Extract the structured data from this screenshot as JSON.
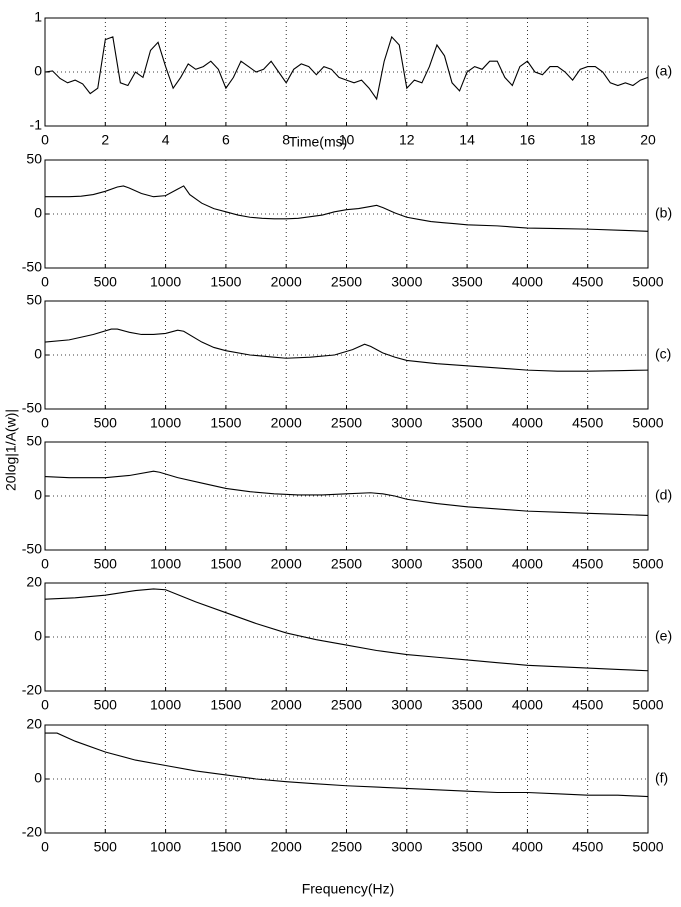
{
  "ylabel": "20log|1/A(w)|",
  "xlabel": "Frequency(Hz)",
  "chart_data": [
    {
      "type": "line",
      "label": "(a)",
      "xlabel": "Time(ms)",
      "color": "#000000",
      "grid": true,
      "x": [
        0,
        0.25,
        0.5,
        0.75,
        1,
        1.25,
        1.5,
        1.75,
        2,
        2.25,
        2.5,
        2.75,
        3,
        3.25,
        3.5,
        3.75,
        4,
        4.25,
        4.5,
        4.75,
        5,
        5.25,
        5.5,
        5.75,
        6,
        6.25,
        6.5,
        6.75,
        7,
        7.25,
        7.5,
        7.75,
        8,
        8.25,
        8.5,
        8.75,
        9,
        9.25,
        9.5,
        9.75,
        10,
        10.25,
        10.5,
        10.75,
        11,
        11.25,
        11.5,
        11.75,
        12,
        12.25,
        12.5,
        12.75,
        13,
        13.25,
        13.5,
        13.75,
        14,
        14.25,
        14.5,
        14.75,
        15,
        15.25,
        15.5,
        15.75,
        16,
        16.25,
        16.5,
        16.75,
        17,
        17.25,
        17.5,
        17.75,
        18,
        18.25,
        18.5,
        18.75,
        19,
        19.25,
        19.5,
        19.75,
        20
      ],
      "values": [
        0,
        0.02,
        -0.12,
        -0.2,
        -0.15,
        -0.22,
        -0.4,
        -0.3,
        0.6,
        0.65,
        -0.2,
        -0.25,
        0,
        -0.1,
        0.4,
        0.55,
        0.1,
        -0.3,
        -0.1,
        0.15,
        0.05,
        0.1,
        0.2,
        0.05,
        -0.3,
        -0.1,
        0.2,
        0.1,
        0,
        0.05,
        0.2,
        0,
        -0.2,
        0.05,
        0.15,
        0.1,
        -0.05,
        0.1,
        0.05,
        -0.1,
        -0.15,
        -0.2,
        -0.15,
        -0.3,
        -0.5,
        0.2,
        0.65,
        0.5,
        -0.3,
        -0.15,
        -0.2,
        0.1,
        0.5,
        0.3,
        -0.2,
        -0.35,
        0,
        0.1,
        0.05,
        0.2,
        0.2,
        -0.1,
        -0.25,
        0.1,
        0.2,
        0,
        -0.05,
        0.1,
        0.1,
        0,
        -0.15,
        0.05,
        0.1,
        0.1,
        0,
        -0.2,
        -0.25,
        -0.2,
        -0.25,
        -0.15,
        -0.1
      ],
      "xlim": [
        0,
        20
      ],
      "ylim": [
        -1,
        1
      ],
      "xticks": [
        0,
        2,
        4,
        6,
        8,
        10,
        12,
        14,
        16,
        18,
        20
      ],
      "yticks": [
        -1,
        0,
        1
      ]
    },
    {
      "type": "line",
      "label": "(b)",
      "color": "#000000",
      "grid": true,
      "x": [
        0,
        100,
        200,
        300,
        400,
        500,
        600,
        650,
        700,
        800,
        900,
        1000,
        1100,
        1150,
        1200,
        1300,
        1400,
        1500,
        1600,
        1700,
        1800,
        1900,
        2000,
        2100,
        2200,
        2300,
        2400,
        2500,
        2600,
        2700,
        2750,
        2800,
        2900,
        3000,
        3100,
        3200,
        3300,
        3400,
        3500,
        3750,
        4000,
        4250,
        4500,
        4750,
        5000
      ],
      "values": [
        16,
        16,
        16,
        16.5,
        18,
        21,
        25,
        26,
        24,
        19,
        16,
        17,
        23,
        26,
        18,
        10,
        5,
        2,
        -1,
        -3,
        -4,
        -4.5,
        -4.5,
        -4,
        -2.5,
        -1,
        2,
        4,
        5,
        7,
        8,
        6,
        1,
        -3,
        -5,
        -7,
        -8,
        -9,
        -10,
        -11,
        -13,
        -13.5,
        -14,
        -15,
        -16
      ],
      "xlim": [
        0,
        5000
      ],
      "ylim": [
        -50,
        50
      ],
      "xticks": [
        0,
        500,
        1000,
        1500,
        2000,
        2500,
        3000,
        3500,
        4000,
        4500,
        5000
      ],
      "yticks": [
        -50,
        0,
        50
      ]
    },
    {
      "type": "line",
      "label": "(c)",
      "color": "#000000",
      "grid": true,
      "x": [
        0,
        200,
        400,
        550,
        600,
        700,
        800,
        900,
        1000,
        1100,
        1150,
        1300,
        1400,
        1500,
        1700,
        1900,
        2000,
        2200,
        2400,
        2550,
        2650,
        2700,
        2800,
        2900,
        3000,
        3250,
        3500,
        3750,
        4000,
        4250,
        4500,
        4750,
        5000
      ],
      "values": [
        12,
        14,
        19,
        24,
        24,
        21,
        19,
        19,
        20,
        23,
        22,
        12,
        7,
        4,
        0,
        -2,
        -3,
        -2,
        0,
        5,
        10,
        8,
        2,
        -2,
        -5,
        -8,
        -10,
        -12,
        -14,
        -15,
        -15,
        -14.5,
        -14
      ],
      "xlim": [
        0,
        5000
      ],
      "ylim": [
        -50,
        50
      ],
      "xticks": [
        0,
        500,
        1000,
        1500,
        2000,
        2500,
        3000,
        3500,
        4000,
        4500,
        5000
      ],
      "yticks": [
        -50,
        0,
        50
      ]
    },
    {
      "type": "line",
      "label": "(d)",
      "color": "#000000",
      "grid": true,
      "x": [
        0,
        200,
        500,
        700,
        900,
        950,
        1100,
        1300,
        1500,
        1700,
        1900,
        2100,
        2300,
        2500,
        2700,
        2800,
        2900,
        3000,
        3250,
        3500,
        3750,
        4000,
        4250,
        4500,
        4750,
        5000
      ],
      "values": [
        18,
        17,
        17,
        19,
        23,
        22,
        17,
        12,
        7,
        4,
        2,
        1,
        1,
        2,
        3,
        2,
        0,
        -3,
        -7,
        -10,
        -12,
        -14,
        -15,
        -16,
        -17,
        -18
      ],
      "xlim": [
        0,
        5000
      ],
      "ylim": [
        -50,
        50
      ],
      "xticks": [
        0,
        500,
        1000,
        1500,
        2000,
        2500,
        3000,
        3500,
        4000,
        4500,
        5000
      ],
      "yticks": [
        -50,
        0,
        50
      ]
    },
    {
      "type": "line",
      "label": "(e)",
      "color": "#000000",
      "grid": true,
      "x": [
        0,
        250,
        500,
        750,
        900,
        1000,
        1250,
        1500,
        1750,
        2000,
        2250,
        2500,
        2750,
        3000,
        3250,
        3500,
        3750,
        4000,
        4250,
        4500,
        4750,
        5000
      ],
      "values": [
        14,
        14.5,
        15.5,
        17.2,
        17.8,
        17.5,
        13,
        9,
        5,
        1.5,
        -1,
        -3,
        -5,
        -6.5,
        -7.5,
        -8.5,
        -9.5,
        -10.5,
        -11,
        -11.5,
        -12,
        -12.5
      ],
      "xlim": [
        0,
        5000
      ],
      "ylim": [
        -20,
        20
      ],
      "xticks": [
        0,
        500,
        1000,
        1500,
        2000,
        2500,
        3000,
        3500,
        4000,
        4500,
        5000
      ],
      "yticks": [
        -20,
        0,
        20
      ]
    },
    {
      "type": "line",
      "label": "(f)",
      "color": "#000000",
      "grid": true,
      "x": [
        0,
        100,
        250,
        500,
        750,
        1000,
        1250,
        1500,
        1750,
        2000,
        2250,
        2500,
        2750,
        3000,
        3250,
        3500,
        3750,
        4000,
        4250,
        4500,
        4750,
        5000
      ],
      "values": [
        17,
        17,
        14,
        10,
        7,
        5,
        3,
        1.5,
        0,
        -1,
        -1.8,
        -2.5,
        -3,
        -3.5,
        -4,
        -4.5,
        -5,
        -5,
        -5.5,
        -6,
        -6,
        -6.5
      ],
      "xlim": [
        0,
        5000
      ],
      "ylim": [
        -20,
        20
      ],
      "xticks": [
        0,
        500,
        1000,
        1500,
        2000,
        2500,
        3000,
        3500,
        4000,
        4500,
        5000
      ],
      "yticks": [
        -20,
        0,
        20
      ]
    }
  ]
}
